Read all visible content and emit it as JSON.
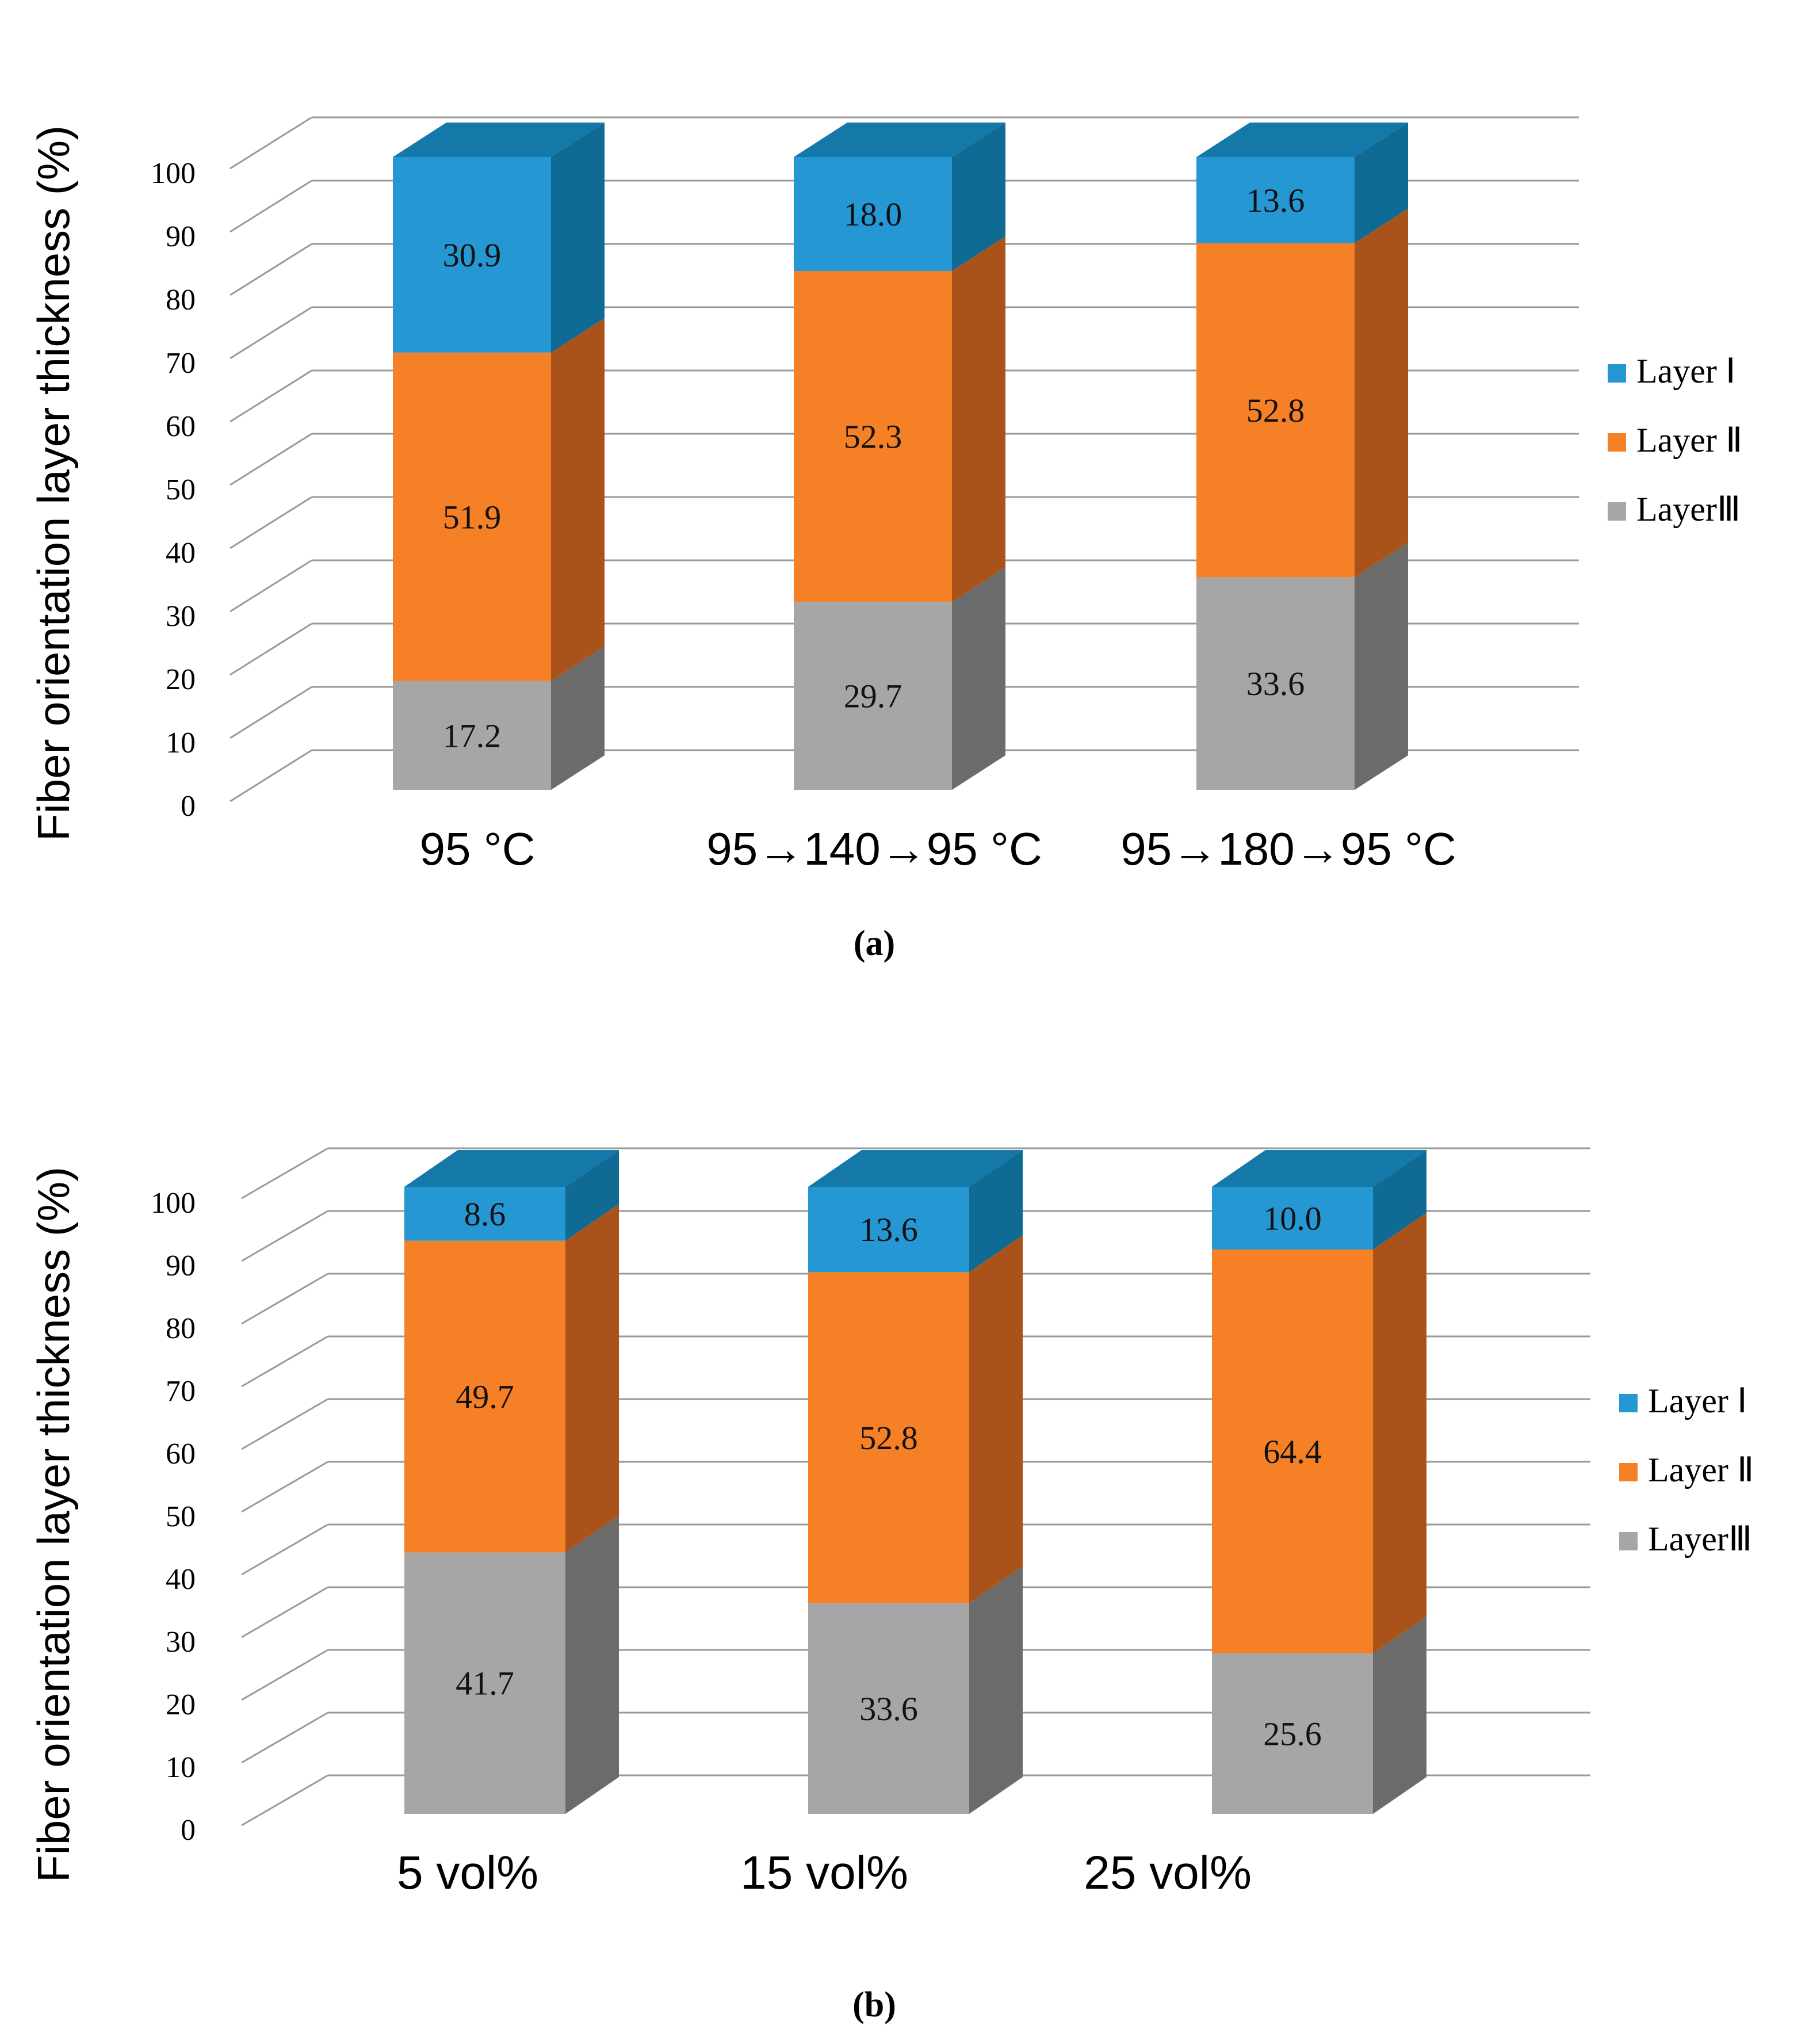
{
  "colors": {
    "layer1_front": "#2597D3",
    "layer1_side": "#0F6A94",
    "layer1_top": "#1478A8",
    "layer2_front": "#F68026",
    "layer2_side": "#A9531A",
    "layer3_front": "#A6A6A6",
    "layer3_side": "#6B6B6B",
    "grid": "#999999"
  },
  "chart_data": [
    {
      "id": "a",
      "type": "bar",
      "stacked": true,
      "three_d": true,
      "caption": "(a)",
      "ylabel": "Fiber orientation layer thickness (%)",
      "ylim": [
        0,
        100
      ],
      "yticks": [
        "0",
        "10",
        "20",
        "30",
        "40",
        "50",
        "60",
        "70",
        "80",
        "90",
        "100"
      ],
      "categories": [
        "95 °C",
        "95→140→95 °C",
        "95→180→95 °C"
      ],
      "series": [
        {
          "name": "Layer III",
          "legend": "LayerⅢ",
          "values": [
            17.2,
            29.7,
            33.6
          ],
          "labels": [
            "17.2",
            "29.7",
            "33.6"
          ]
        },
        {
          "name": "Layer II",
          "legend": "Layer Ⅱ",
          "values": [
            51.9,
            52.3,
            52.8
          ],
          "labels": [
            "51.9",
            "52.3",
            "52.8"
          ]
        },
        {
          "name": "Layer I",
          "legend": "Layer Ⅰ",
          "values": [
            30.9,
            18.0,
            13.6
          ],
          "labels": [
            "30.9",
            "18.0",
            "13.6"
          ]
        }
      ],
      "legend_position": "right"
    },
    {
      "id": "b",
      "type": "bar",
      "stacked": true,
      "three_d": true,
      "caption": "(b)",
      "ylabel": "Fiber orientation layer thickness (%)",
      "ylim": [
        0,
        100
      ],
      "yticks": [
        "0",
        "10",
        "20",
        "30",
        "40",
        "50",
        "60",
        "70",
        "80",
        "90",
        "100"
      ],
      "categories": [
        "5 vol%",
        "15 vol%",
        "25 vol%"
      ],
      "series": [
        {
          "name": "Layer III",
          "legend": "LayerⅢ",
          "values": [
            41.7,
            33.6,
            25.6
          ],
          "labels": [
            "41.7",
            "33.6",
            "25.6"
          ]
        },
        {
          "name": "Layer II",
          "legend": "Layer Ⅱ",
          "values": [
            49.7,
            52.8,
            64.4
          ],
          "labels": [
            "49.7",
            "52.8",
            "64.4"
          ]
        },
        {
          "name": "Layer I",
          "legend": "Layer Ⅰ",
          "values": [
            8.6,
            13.6,
            10.0
          ],
          "labels": [
            "8.6",
            "13.6",
            "10.0"
          ]
        }
      ],
      "legend_position": "right"
    }
  ]
}
